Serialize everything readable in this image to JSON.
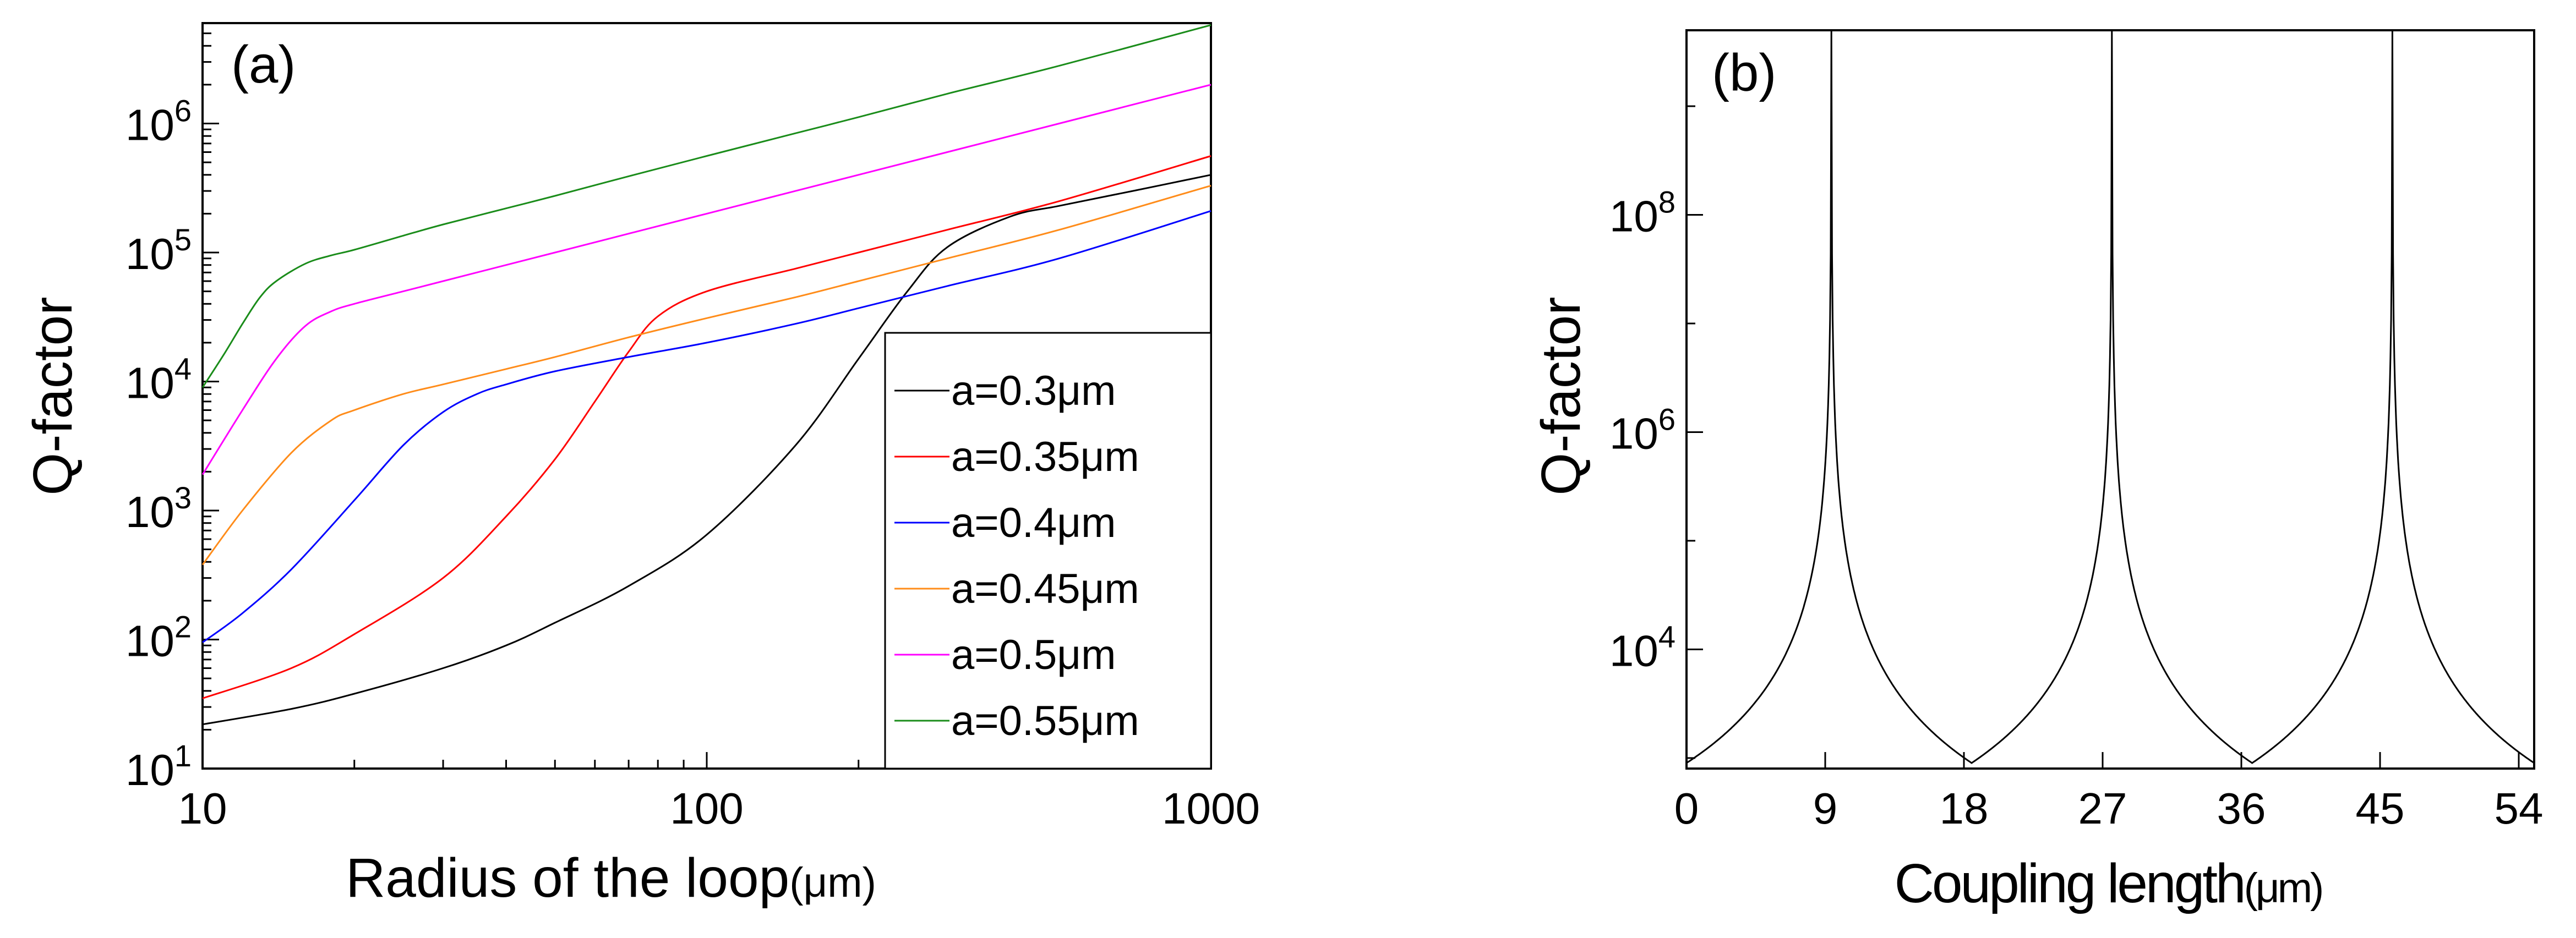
{
  "chart_data": [
    {
      "type": "line",
      "panel_label": "(a)",
      "xlabel": "Radius of the loop",
      "xlabel_unit": "(μm)",
      "ylabel": "Q-factor",
      "xscale": "log",
      "yscale": "log",
      "xlim": [
        10,
        1000
      ],
      "ylim": [
        10,
        6000000
      ],
      "x_tick_labels": [
        {
          "value": 10,
          "base": "10",
          "exp": ""
        },
        {
          "value": 100,
          "base": "100",
          "exp": ""
        },
        {
          "value": 1000,
          "base": "1000",
          "exp": ""
        }
      ],
      "y_tick_labels": [
        {
          "value": 10,
          "base": "10",
          "exp": "1"
        },
        {
          "value": 100,
          "base": "10",
          "exp": "2"
        },
        {
          "value": 1000,
          "base": "10",
          "exp": "3"
        },
        {
          "value": 10000,
          "base": "10",
          "exp": "4"
        },
        {
          "value": 100000,
          "base": "10",
          "exp": "5"
        },
        {
          "value": 1000000,
          "base": "10",
          "exp": "6"
        }
      ],
      "legend_position": "lower-right",
      "series": [
        {
          "name": "a=0.3μm",
          "color": "#000000",
          "x": [
            10,
            15,
            20,
            30,
            40,
            50,
            70,
            100,
            150,
            200,
            250,
            300,
            400,
            500,
            700,
            1000
          ],
          "y": [
            22,
            29,
            38,
            60,
            90,
            135,
            260,
            650,
            3200,
            15000,
            50000,
            110000,
            190000,
            230000,
            300000,
            400000
          ]
        },
        {
          "name": "a=0.35μm",
          "color": "#ff0000",
          "x": [
            10,
            15,
            20,
            30,
            40,
            50,
            60,
            70,
            80,
            100,
            150,
            200,
            300,
            500,
            1000
          ],
          "y": [
            35,
            60,
            110,
            300,
            900,
            2500,
            7000,
            17000,
            32000,
            50000,
            75000,
            100000,
            150000,
            250000,
            560000
          ]
        },
        {
          "name": "a=0.4μm",
          "color": "#0000ff",
          "x": [
            10,
            12,
            15,
            20,
            25,
            30,
            35,
            40,
            50,
            70,
            100,
            150,
            200,
            300,
            500,
            1000
          ],
          "y": [
            95,
            160,
            350,
            1200,
            3200,
            5800,
            8000,
            9500,
            12000,
            15500,
            20000,
            28000,
            37000,
            55000,
            90000,
            210000
          ]
        },
        {
          "name": "a=0.45μm",
          "color": "#ff8c1a",
          "x": [
            10,
            12,
            15,
            18,
            20,
            25,
            30,
            40,
            50,
            70,
            100,
            150,
            200,
            300,
            500,
            1000
          ],
          "y": [
            380,
            1000,
            2800,
            5000,
            6000,
            8000,
            9500,
            12500,
            15500,
            22000,
            31000,
            45000,
            60000,
            90000,
            150000,
            330000
          ]
        },
        {
          "name": "a=0.5μm",
          "color": "#ff00ff",
          "x": [
            10,
            12,
            14,
            16,
            18,
            20,
            25,
            30,
            40,
            50,
            70,
            100,
            150,
            200,
            300,
            500,
            1000
          ],
          "y": [
            1900,
            6000,
            15000,
            27000,
            35000,
            40000,
            50000,
            60000,
            80000,
            100000,
            140000,
            200000,
            300000,
            400000,
            600000,
            1000000,
            2000000
          ]
        },
        {
          "name": "a=0.55μm",
          "color": "#1a8c1a",
          "x": [
            10,
            11,
            12,
            13,
            14,
            16,
            18,
            20,
            25,
            30,
            40,
            50,
            70,
            100,
            150,
            200,
            300,
            500,
            1000
          ],
          "y": [
            9000,
            16000,
            28000,
            45000,
            60000,
            82000,
            95000,
            105000,
            135000,
            165000,
            220000,
            275000,
            390000,
            560000,
            840000,
            1120000,
            1700000,
            2800000,
            5800000
          ]
        }
      ]
    },
    {
      "type": "line",
      "panel_label": "(b)",
      "xlabel": "Coupling length",
      "xlabel_unit": "(μm)",
      "ylabel": "Q-factor",
      "xscale": "linear",
      "yscale": "log",
      "xlim": [
        0,
        55
      ],
      "ylim": [
        800,
        5000000000
      ],
      "x_tick_labels": [
        {
          "value": 0,
          "base": "0",
          "exp": ""
        },
        {
          "value": 9,
          "base": "9",
          "exp": ""
        },
        {
          "value": 18,
          "base": "18",
          "exp": ""
        },
        {
          "value": 27,
          "base": "27",
          "exp": ""
        },
        {
          "value": 36,
          "base": "36",
          "exp": ""
        },
        {
          "value": 45,
          "base": "45",
          "exp": ""
        },
        {
          "value": 54,
          "base": "54",
          "exp": ""
        }
      ],
      "y_tick_labels": [
        {
          "value": 10000,
          "base": "10",
          "exp": "4"
        },
        {
          "value": 1000000,
          "base": "10",
          "exp": "6"
        },
        {
          "value": 100000000,
          "base": "10",
          "exp": "8"
        }
      ],
      "series": [
        {
          "name": "Q-factor",
          "color": "#000000",
          "peaks_x": [
            9.4,
            27.6,
            45.8
          ],
          "minima_x": [
            0,
            18.5,
            36.7,
            55
          ],
          "min_q": 900,
          "peak_q": 5000000000
        }
      ]
    }
  ]
}
